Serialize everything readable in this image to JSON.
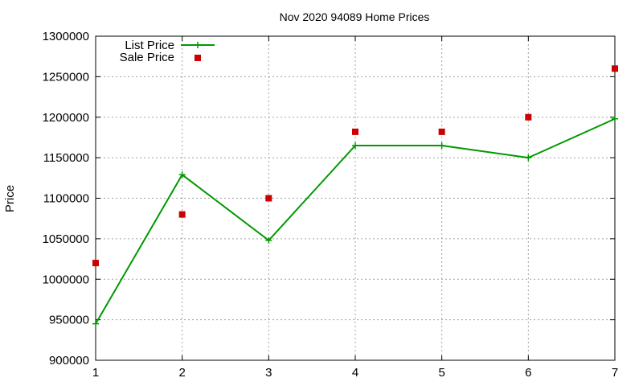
{
  "chart_data": {
    "type": "line",
    "title": "Nov 2020 94089 Home Prices",
    "xlabel": "",
    "ylabel": "Price",
    "x": [
      1,
      2,
      3,
      4,
      5,
      6,
      7
    ],
    "xlim": [
      1,
      7
    ],
    "ylim": [
      900000,
      1300000
    ],
    "xticks": [
      "1",
      "2",
      "3",
      "4",
      "5",
      "6",
      "7"
    ],
    "yticks": [
      "900000",
      "950000",
      "1000000",
      "1050000",
      "1100000",
      "1150000",
      "1200000",
      "1250000",
      "1300000"
    ],
    "grid": true,
    "legend_position": "top-left",
    "series": [
      {
        "name": "List Price",
        "style": "line-with-plus-markers",
        "color": "#009900",
        "values": [
          945000,
          1129000,
          1048000,
          1165000,
          1165000,
          1150000,
          1198000
        ]
      },
      {
        "name": "Sale Price",
        "style": "square-points",
        "color": "#cc0000",
        "values": [
          1020000,
          1080000,
          1100000,
          1182000,
          1182000,
          1200000,
          1260000
        ]
      }
    ]
  }
}
